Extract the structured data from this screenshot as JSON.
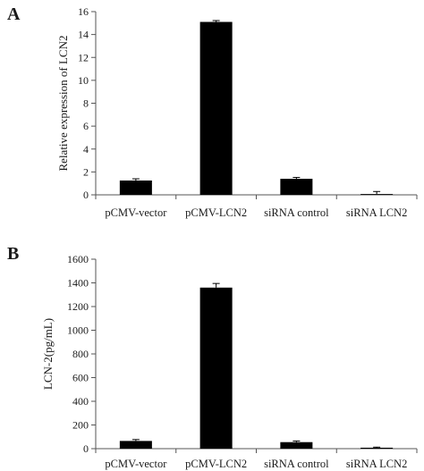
{
  "chart_data": [
    {
      "type": "bar",
      "panel_label": "A",
      "categories": [
        "pCMV-vector",
        "pCMV-LCN2",
        "siRNA control",
        "siRNA LCN2"
      ],
      "values": [
        1.25,
        15.1,
        1.4,
        0.07
      ],
      "errors": [
        0.15,
        0.12,
        0.12,
        0.22
      ],
      "ylabel": "Relative expression of LCN2",
      "ylim": [
        0,
        16
      ],
      "yticks": [
        0,
        2,
        4,
        6,
        8,
        10,
        12,
        14,
        16
      ],
      "bar_color": "#000000",
      "grid": false
    },
    {
      "type": "bar",
      "panel_label": "B",
      "categories": [
        "pCMV-vector",
        "pCMV-LCN2",
        "siRNA control",
        "siRNA LCN2"
      ],
      "values": [
        65,
        1360,
        55,
        8
      ],
      "errors": [
        12,
        35,
        10,
        5
      ],
      "ylabel": "LCN-2(pg/mL)",
      "ylim": [
        0,
        1600
      ],
      "yticks": [
        0,
        200,
        400,
        600,
        800,
        1000,
        1200,
        1400,
        1600
      ],
      "bar_color": "#000000",
      "grid": false
    }
  ]
}
